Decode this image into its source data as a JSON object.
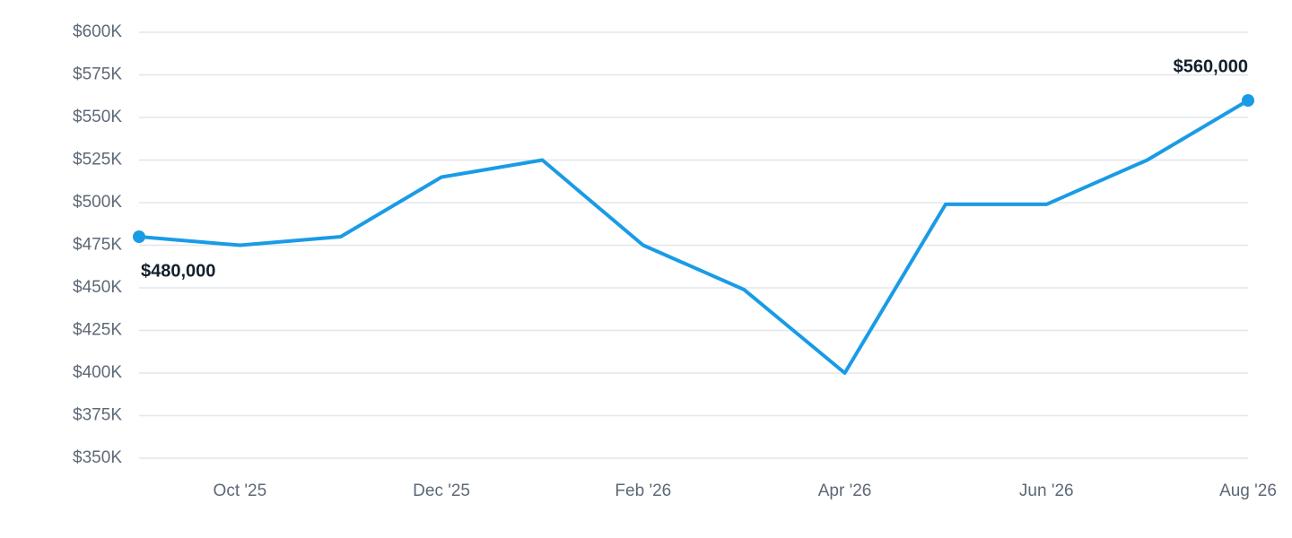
{
  "chart_data": {
    "type": "line",
    "categories": [
      null,
      "Oct '25",
      null,
      "Dec '25",
      null,
      "Feb '26",
      null,
      "Apr '26",
      null,
      "Jun '26",
      null,
      "Aug '26"
    ],
    "series": [
      {
        "color": "#1a9be6",
        "values": [
          480000,
          475000,
          480000,
          515000,
          525000,
          475000,
          449000,
          400000,
          499000,
          499000,
          525000,
          560000
        ],
        "value_labels": [
          "$480,000",
          null,
          null,
          null,
          null,
          null,
          null,
          null,
          null,
          null,
          null,
          "$560,000"
        ]
      }
    ],
    "ylim": [
      350000,
      600000
    ],
    "yticks": [
      {
        "value": 350000,
        "label": "$350K"
      },
      {
        "value": 375000,
        "label": "$375K"
      },
      {
        "value": 400000,
        "label": "$400K"
      },
      {
        "value": 425000,
        "label": "$425K"
      },
      {
        "value": 450000,
        "label": "$450K"
      },
      {
        "value": 475000,
        "label": "$475K"
      },
      {
        "value": 500000,
        "label": "$500K"
      },
      {
        "value": 525000,
        "label": "$525K"
      },
      {
        "value": 550000,
        "label": "$550K"
      },
      {
        "value": 575000,
        "label": "$575K"
      },
      {
        "value": 600000,
        "label": "$600K"
      }
    ],
    "grid": true
  }
}
